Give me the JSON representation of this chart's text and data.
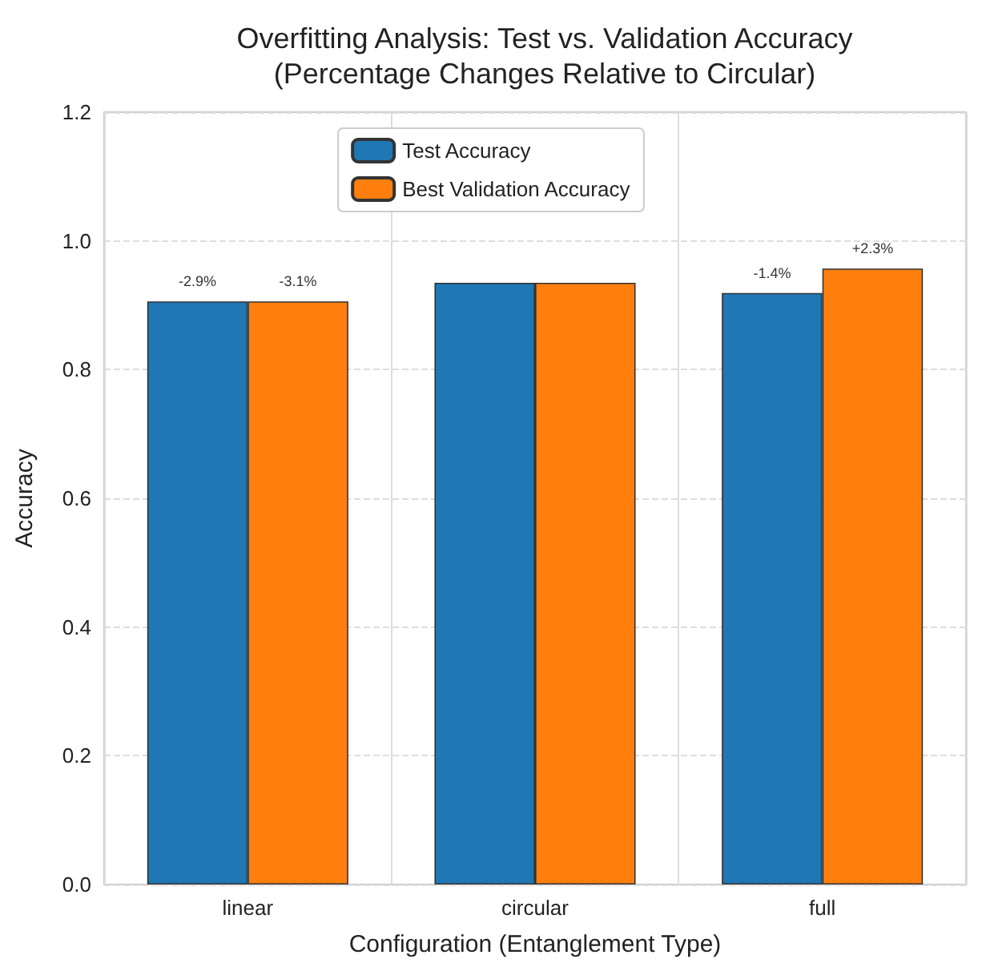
{
  "chart_data": {
    "type": "bar",
    "title": "Overfitting Analysis: Test vs. Validation Accuracy\n(Percentage Changes Relative to Circular)",
    "xlabel": "Configuration (Entanglement Type)",
    "ylabel": "Accuracy",
    "categories": [
      "linear",
      "circular",
      "full"
    ],
    "series": [
      {
        "name": "Test Accuracy",
        "color": "#1f77b4",
        "values": [
          0.906,
          0.935,
          0.919
        ]
      },
      {
        "name": "Best Validation Accuracy",
        "color": "#ff7f0e",
        "values": [
          0.906,
          0.935,
          0.957
        ]
      }
    ],
    "annotations": [
      {
        "text": "-2.9%",
        "x": "linear",
        "y": 0.906
      },
      {
        "text": "-3.1%",
        "x": "linear",
        "y": 0.906
      },
      {
        "text": "-1.4%",
        "x": "full",
        "y": 0.919
      },
      {
        "text": "+2.3%",
        "x": "full",
        "y": 0.957
      }
    ],
    "ylim": [
      0,
      1.2
    ],
    "yticks": [
      {
        "value": 0,
        "label": "0.0"
      },
      0.2,
      0.4,
      0.6,
      0.8,
      {
        "value": 1,
        "label": "1.0"
      },
      1.2
    ],
    "grid": true,
    "legend": "top"
  }
}
